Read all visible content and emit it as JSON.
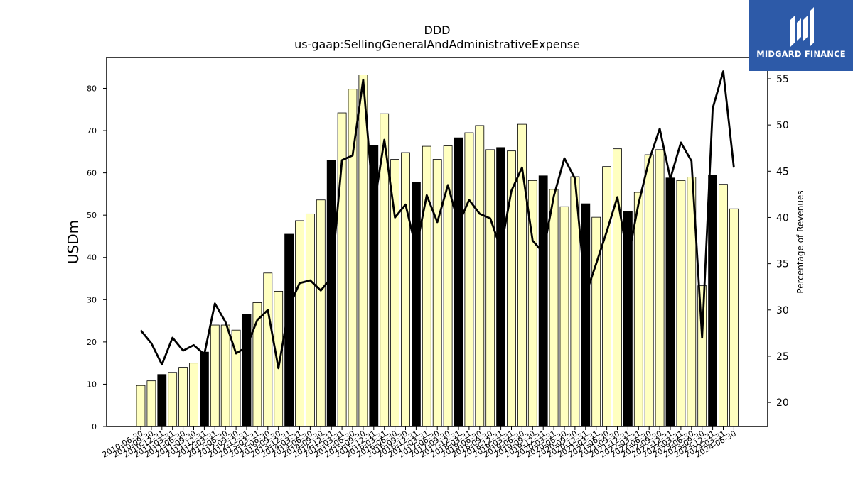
{
  "logo": {
    "text": "MIDGARD FINANCE",
    "icon": "midgard-logo-icon",
    "color": "#2d5aa8"
  },
  "chart_data": {
    "type": "bar",
    "title": "DDD",
    "subtitle": "us-gaap:SellingGeneralAndAdministrativeExpense",
    "ylabel": "USDm",
    "y2label": "Percentage of Revenues",
    "ylim": [
      0,
      87.3
    ],
    "y2lim": [
      17.4,
      57.3
    ],
    "yticks": [
      0,
      10,
      20,
      30,
      40,
      50,
      60,
      70,
      80
    ],
    "y2ticks": [
      20,
      25,
      30,
      35,
      40,
      45,
      50,
      55
    ],
    "colors": {
      "quarter_bar": "#ffffc0",
      "annual_bar": "#000000",
      "bar_edge": "#000000",
      "line": "#000000"
    },
    "categories": [
      "2010-06-30",
      "2010-09-30",
      "2010-12-31",
      "2011-03-31",
      "2011-06-30",
      "2011-09-30",
      "2011-12-31",
      "2012-03-31",
      "2012-06-30",
      "2012-09-30",
      "2012-12-31",
      "2013-03-31",
      "2013-06-30",
      "2013-09-30",
      "2013-12-31",
      "2014-03-31",
      "2014-06-30",
      "2014-09-30",
      "2014-12-31",
      "2015-03-31",
      "2015-06-30",
      "2015-09-30",
      "2015-12-31",
      "2016-03-31",
      "2016-06-30",
      "2016-09-30",
      "2016-12-31",
      "2017-03-31",
      "2017-06-30",
      "2017-09-30",
      "2017-12-31",
      "2018-03-31",
      "2018-06-30",
      "2018-09-30",
      "2018-12-31",
      "2019-03-31",
      "2019-06-30",
      "2019-09-30",
      "2019-12-31",
      "2020-03-31",
      "2020-06-30",
      "2020-09-30",
      "2020-12-31",
      "2021-03-31",
      "2021-06-30",
      "2021-09-30",
      "2021-12-31",
      "2022-03-31",
      "2022-06-30",
      "2022-09-30",
      "2022-12-31",
      "2023-03-31",
      "2023-06-30",
      "2023-09-30",
      "2023-12-31",
      "2024-03-31",
      "2024-06-30"
    ],
    "series": [
      {
        "kind": "bar",
        "axis": "left",
        "values": [
          9.7,
          10.8,
          12.3,
          12.8,
          14.0,
          15.0,
          17.6,
          24.0,
          24.0,
          22.8,
          26.5,
          29.3,
          36.3,
          32.0,
          45.5,
          48.7,
          50.3,
          53.6,
          63.0,
          74.2,
          79.8,
          83.2,
          66.5,
          74.0,
          63.2,
          64.8,
          57.8,
          66.3,
          63.2,
          66.4,
          68.3,
          69.5,
          71.2,
          65.5,
          66.0,
          65.2,
          71.5,
          58.2,
          59.3,
          56.1,
          52.0,
          59.1,
          52.7,
          49.5,
          61.5,
          65.7,
          50.8,
          55.4,
          64.3,
          65.5,
          58.8,
          58.2,
          59.0,
          33.3,
          59.4,
          57.3,
          51.5
        ],
        "annual": [
          false,
          false,
          true,
          false,
          false,
          false,
          true,
          false,
          false,
          false,
          true,
          false,
          false,
          false,
          true,
          false,
          false,
          false,
          true,
          false,
          false,
          false,
          true,
          false,
          false,
          false,
          true,
          false,
          false,
          false,
          true,
          false,
          false,
          false,
          true,
          false,
          false,
          false,
          true,
          false,
          false,
          false,
          true,
          false,
          false,
          false,
          true,
          false,
          false,
          false,
          true,
          false,
          false,
          false,
          true,
          false,
          false
        ]
      },
      {
        "kind": "line",
        "axis": "right",
        "values": [
          27.8,
          26.4,
          24.1,
          27.0,
          25.6,
          26.2,
          25.2,
          30.7,
          28.7,
          25.3,
          26.0,
          28.9,
          30.0,
          23.7,
          30.3,
          32.9,
          33.2,
          32.1,
          33.5,
          46.2,
          46.7,
          54.9,
          41.0,
          48.4,
          40.0,
          41.4,
          36.6,
          42.4,
          39.5,
          43.5,
          39.3,
          41.9,
          40.4,
          39.9,
          36.6,
          42.9,
          45.4,
          37.5,
          36.2,
          42.3,
          46.4,
          44.2,
          31.6,
          35.0,
          38.5,
          42.2,
          35.5,
          41.5,
          46.2,
          49.6,
          44.2,
          48.1,
          46.1,
          27.0,
          51.8,
          55.8,
          45.4
        ]
      }
    ]
  }
}
